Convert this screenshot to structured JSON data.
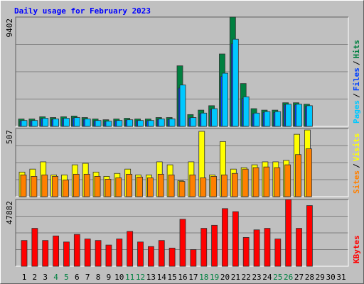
{
  "title": "Daily usage for February 2023",
  "legend_separator": "/",
  "categories": [
    "1",
    "2",
    "3",
    "4",
    "5",
    "6",
    "7",
    "8",
    "9",
    "10",
    "11",
    "12",
    "13",
    "14",
    "15",
    "16",
    "17",
    "18",
    "19",
    "20",
    "21",
    "22",
    "23",
    "24",
    "25",
    "26",
    "27",
    "28",
    "29",
    "30",
    "31"
  ],
  "highlight_indices": [
    3,
    4,
    10,
    11,
    17,
    18,
    24,
    25
  ],
  "highlight_color": "#008040",
  "label_color": "#000000",
  "chart_data": [
    {
      "type": "bar",
      "ylim": [
        0,
        9402
      ],
      "yticks": [
        9402
      ],
      "series": [
        {
          "name": "Hits",
          "color": "#008040",
          "values": [
            635,
            635,
            826,
            762,
            826,
            890,
            762,
            635,
            572,
            635,
            699,
            635,
            635,
            762,
            762,
            5209,
            1016,
            1398,
            1779,
            6226,
            9402,
            3685,
            1525,
            1398,
            1398,
            2033,
            2033,
            1906,
            null,
            null,
            null
          ]
        },
        {
          "name": "Files",
          "color": "#0040ff",
          "values": [
            480,
            480,
            660,
            600,
            660,
            720,
            600,
            480,
            420,
            480,
            540,
            480,
            480,
            600,
            600,
            3300,
            720,
            1080,
            1450,
            4300,
            7100,
            2400,
            1080,
            1200,
            1200,
            1850,
            1850,
            1720,
            null,
            null,
            null
          ]
        },
        {
          "name": "Pages",
          "color": "#00c8ff",
          "values": [
            508,
            508,
            700,
            640,
            700,
            760,
            640,
            508,
            450,
            508,
            570,
            508,
            508,
            640,
            640,
            3557,
            762,
            1143,
            1525,
            4574,
            7496,
            2541,
            1143,
            1271,
            1271,
            1906,
            1906,
            1779,
            null,
            null,
            null
          ]
        }
      ]
    },
    {
      "type": "bar",
      "ylim": [
        0,
        507
      ],
      "yticks": [
        507
      ],
      "series": [
        {
          "name": "Visits",
          "color": "#ffff00",
          "values": [
            183,
            205,
            259,
            162,
            162,
            237,
            248,
            183,
            151,
            173,
            205,
            162,
            162,
            259,
            237,
            119,
            259,
            486,
            162,
            410,
            205,
            216,
            237,
            259,
            259,
            270,
            464,
            496,
            null,
            null,
            null
          ]
        },
        {
          "name": "Sites",
          "color": "#ff8000",
          "values": [
            162,
            151,
            162,
            151,
            124,
            167,
            167,
            151,
            130,
            140,
            167,
            146,
            140,
            167,
            162,
            113,
            162,
            140,
            151,
            162,
            173,
            205,
            216,
            221,
            216,
            237,
            313,
            356,
            null,
            null,
            null
          ]
        }
      ]
    },
    {
      "type": "bar",
      "ylim": [
        0,
        47882
      ],
      "yticks": [
        47882
      ],
      "series": [
        {
          "name": "KBytes",
          "color": "#ff0000",
          "values": [
            18500,
            27206,
            18500,
            21764,
            17411,
            22852,
            19588,
            18500,
            15235,
            19588,
            25029,
            17411,
            14147,
            18500,
            13059,
            33735,
            11970,
            27206,
            29382,
            41353,
            39176,
            20676,
            26117,
            27206,
            19588,
            47882,
            27206,
            43529,
            null,
            null,
            null
          ]
        }
      ]
    }
  ]
}
